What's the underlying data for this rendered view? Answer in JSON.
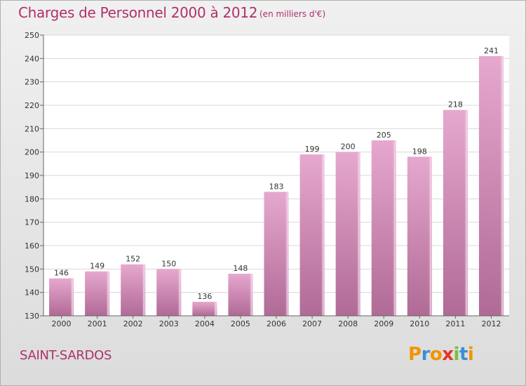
{
  "header": {
    "title": "Charges de Personnel 2000 à 2012",
    "subtitle": "(en milliers d'€)"
  },
  "footer": {
    "place": "SAINT-SARDOS",
    "logo_text": "Proxiti"
  },
  "colors": {
    "bar_top": "#e6a8ce",
    "bar_bottom": "#b06a96",
    "text_accent": "#b0306a"
  },
  "chart_data": {
    "type": "bar",
    "title": "Charges de Personnel 2000 à 2012",
    "subtitle": "(en milliers d'€)",
    "categories": [
      "2000",
      "2001",
      "2002",
      "2003",
      "2004",
      "2005",
      "2006",
      "2007",
      "2008",
      "2009",
      "2010",
      "2011",
      "2012"
    ],
    "values": [
      146,
      149,
      152,
      150,
      136,
      148,
      183,
      199,
      200,
      205,
      198,
      218,
      241
    ],
    "ylim": [
      130,
      250
    ],
    "yticks": [
      130,
      140,
      150,
      160,
      170,
      180,
      190,
      200,
      210,
      220,
      230,
      240,
      250
    ],
    "grid": true,
    "legend": "none"
  }
}
